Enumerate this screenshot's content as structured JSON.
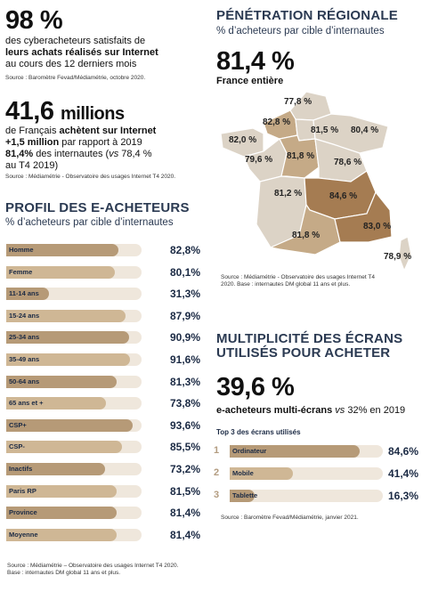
{
  "left_top": {
    "stat1_value": "98 %",
    "stat1_line1": "des cyberacheteurs satisfaits de",
    "stat1_line2": "leurs achats réalisés sur Internet",
    "stat1_line3": "au cours des 12 derniers mois",
    "stat1_source": "Source : Baromètre Fevad/Médiamétrie, octobre 2020.",
    "stat2_value_num": "41,6",
    "stat2_value_unit": "millions",
    "stat2_line1_a": "de Français",
    "stat2_line1_b": "achètent sur Internet",
    "stat2_line2_a": "+1,5 million",
    "stat2_line2_b": "par rapport à 2019",
    "stat2_line3_a": "81,4%",
    "stat2_line3_b": "des internautes (",
    "stat2_line3_c": "vs",
    "stat2_line3_d": "78,4 %",
    "stat2_line4": "au T4 2019)",
    "stat2_source": "Source : Médiamétrie - Observatoire des usages Internet T4 2020."
  },
  "profil": {
    "title": "PROFIL DES E-ACHETEURS",
    "subtitle": "% d’acheteurs par cible d’internautes",
    "source_line1": "Source : Médiamétrie – Observatoire des usages Internet T4 2020.",
    "source_line2": "Base : internautes DM global 11 ans et plus."
  },
  "chart_data": [
    {
      "type": "bar",
      "orientation": "horizontal",
      "title": "PROFIL DES E-ACHETEURS",
      "subtitle": "% d’acheteurs par cible d’internautes",
      "categories": [
        "Homme",
        "Femme",
        "11-14 ans",
        "15-24 ans",
        "25-34 ans",
        "35-49 ans",
        "50-64 ans",
        "65 ans et +",
        "CSP+",
        "CSP-",
        "Inactifs",
        "Paris RP",
        "Province",
        "Moyenne"
      ],
      "values": [
        82.8,
        80.1,
        31.3,
        87.9,
        90.9,
        91.6,
        81.3,
        73.8,
        93.6,
        85.5,
        73.2,
        81.5,
        81.4,
        81.4
      ],
      "labels": [
        "82,8%",
        "80,1%",
        "31,3%",
        "87,9%",
        "90,9%",
        "91,6%",
        "81,3%",
        "73,8%",
        "93,6%",
        "85,5%",
        "73,2%",
        "81,5%",
        "81,4%",
        "81,4%"
      ],
      "xlim": [
        0,
        100
      ]
    },
    {
      "type": "bar",
      "orientation": "horizontal",
      "title": "Top 3 des écrans utilisés",
      "categories": [
        "Ordinateur",
        "Mobile",
        "Tablette"
      ],
      "values": [
        84.6,
        41.4,
        16.3
      ],
      "labels": [
        "84,6%",
        "41,4%",
        "16,3%"
      ],
      "xlim": [
        0,
        100
      ]
    }
  ],
  "penetration": {
    "title": "PÉNÉTRATION RÉGIONALE",
    "subtitle": "% d’acheteurs par cible d’internautes",
    "value": "81,4 %",
    "value_label": "France entière",
    "regions": [
      "77,8 %",
      "82,8 %",
      "81,5 %",
      "80,4 %",
      "82,0 %",
      "79,6 %",
      "81,8 %",
      "78,6 %",
      "81,2 %",
      "84,6 %",
      "83,0 %",
      "81,8 %",
      "78,9 %"
    ],
    "source_line1": "Source : Médiamétrie - Observatoire des usages Internet T4",
    "source_line2": "2020. Base : internautes DM global 11 ans et plus."
  },
  "ecrans": {
    "title_line1": "MULTIPLICITÉ DES ÉCRANS",
    "title_line2": "UTILISÉS POUR ACHETER",
    "value": "39,6 %",
    "value_label_a": "e-acheteurs multi-écrans",
    "value_label_b": "vs",
    "value_label_c": "32% en 2019",
    "top3_title": "Top 3 des écrans utilisés",
    "nums": [
      "1",
      "2",
      "3"
    ],
    "source": "Source : Baromètre Fevad/Médiamétrie, janvier 2021."
  },
  "colors": {
    "bar_dark": "#b69a77",
    "bar_light": "#cfb795",
    "track": "#efe7dc",
    "title_blue": "#2b3a52",
    "map_light": "#dcd3c6",
    "map_mid": "#c5aa87",
    "map_dark": "#a57c52"
  }
}
